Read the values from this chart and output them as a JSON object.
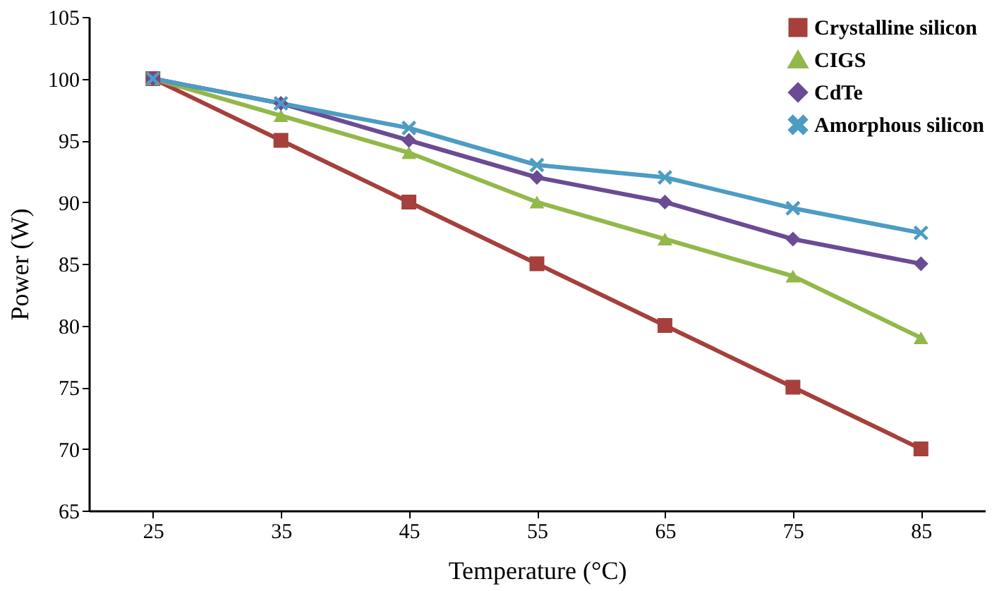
{
  "chart_data": {
    "type": "line",
    "xlabel": "Temperature (°C)",
    "ylabel": "Power (W)",
    "categories": [
      "25",
      "35",
      "45",
      "55",
      "65",
      "75",
      "85"
    ],
    "series": [
      {
        "name": "Crystalline silicon",
        "color": "#a5403d",
        "marker": "square",
        "values": [
          100,
          95,
          90,
          85,
          80,
          75,
          70
        ]
      },
      {
        "name": "CIGS",
        "color": "#93b84a",
        "marker": "triangle",
        "values": [
          100,
          97,
          94,
          90,
          87,
          84,
          79
        ]
      },
      {
        "name": "CdTe",
        "color": "#6b4b94",
        "marker": "diamond",
        "values": [
          100,
          98,
          95,
          92,
          90,
          87,
          85
        ]
      },
      {
        "name": "Amorphous silicon",
        "color": "#4d9cc4",
        "marker": "cross",
        "values": [
          100,
          98,
          96,
          93,
          92,
          89.5,
          87.5
        ]
      }
    ],
    "ylim": [
      65,
      105
    ],
    "yticks": [
      65,
      70,
      75,
      80,
      85,
      90,
      95,
      100,
      105
    ],
    "grid": false,
    "legend": "top right"
  }
}
